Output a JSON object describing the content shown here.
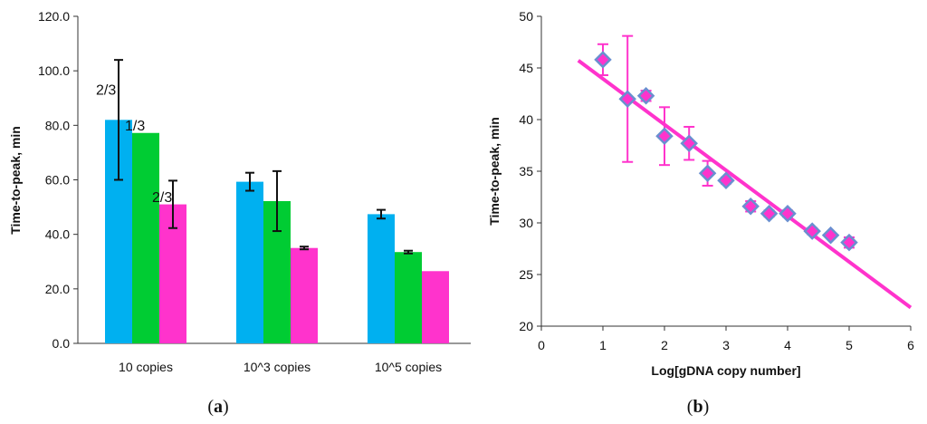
{
  "chart_data": [
    {
      "type": "bar",
      "panel_label": "a",
      "categories": [
        "10 copies",
        "10^3 copies",
        "10^5 copies"
      ],
      "series": [
        {
          "color": "#00b0f0",
          "values": [
            82.0,
            59.3,
            47.4
          ],
          "error": [
            22.0,
            3.3,
            1.6
          ]
        },
        {
          "color": "#00cc33",
          "values": [
            77.2,
            52.2,
            33.5
          ],
          "error": [
            null,
            11.0,
            0.5
          ]
        },
        {
          "color": "#ff33cc",
          "values": [
            51.0,
            35.0,
            26.5
          ],
          "error": [
            8.7,
            0.5,
            null
          ]
        }
      ],
      "annotations": [
        {
          "text": "2/3",
          "category": 0,
          "series": 0
        },
        {
          "text": "1/3",
          "category": 0,
          "series": 1
        },
        {
          "text": "2/3",
          "category": 0,
          "series": 2
        }
      ],
      "yticks": [
        "0.0",
        "20.0",
        "40.0",
        "60.0",
        "80.0",
        "100.0",
        "120.0"
      ],
      "ylabel": "Time-to-peak, min",
      "xlabel": "",
      "ylim": [
        0,
        120
      ],
      "grid": false,
      "legend": "none"
    },
    {
      "type": "scatter",
      "panel_label": "b",
      "marker_fill": "#ff33cc",
      "marker_edge": "#6a8fd0",
      "line_color": "#ff33cc",
      "points": [
        {
          "x": 1.0,
          "y": 45.8,
          "err": 1.5
        },
        {
          "x": 1.4,
          "y": 42.0,
          "err": 6.1
        },
        {
          "x": 1.7,
          "y": 42.3,
          "err": 0.5
        },
        {
          "x": 2.0,
          "y": 38.4,
          "err": 2.8
        },
        {
          "x": 2.4,
          "y": 37.7,
          "err": 1.6
        },
        {
          "x": 2.7,
          "y": 34.8,
          "err": 1.2
        },
        {
          "x": 3.0,
          "y": 34.1,
          "err": 0.3
        },
        {
          "x": 3.4,
          "y": 31.6,
          "err": 0.5
        },
        {
          "x": 3.7,
          "y": 30.9,
          "err": 0.3
        },
        {
          "x": 4.0,
          "y": 30.9,
          "err": 0.3
        },
        {
          "x": 4.4,
          "y": 29.2,
          "err": 0.3
        },
        {
          "x": 4.7,
          "y": 28.8,
          "err": 0.2
        },
        {
          "x": 5.0,
          "y": 28.1,
          "err": 0.5
        }
      ],
      "trendline": {
        "slope": -4.43,
        "intercept": 48.38,
        "xrange": [
          0.6,
          6.0
        ]
      },
      "xticks": [
        "0",
        "1",
        "2",
        "3",
        "4",
        "5",
        "6"
      ],
      "yticks": [
        "20",
        "25",
        "30",
        "35",
        "40",
        "45",
        "50"
      ],
      "xlabel": "Log[gDNA copy number]",
      "ylabel": "Time-to-peak, min",
      "xlim": [
        0,
        6
      ],
      "ylim": [
        20,
        50
      ],
      "grid": false,
      "legend": "none"
    }
  ]
}
